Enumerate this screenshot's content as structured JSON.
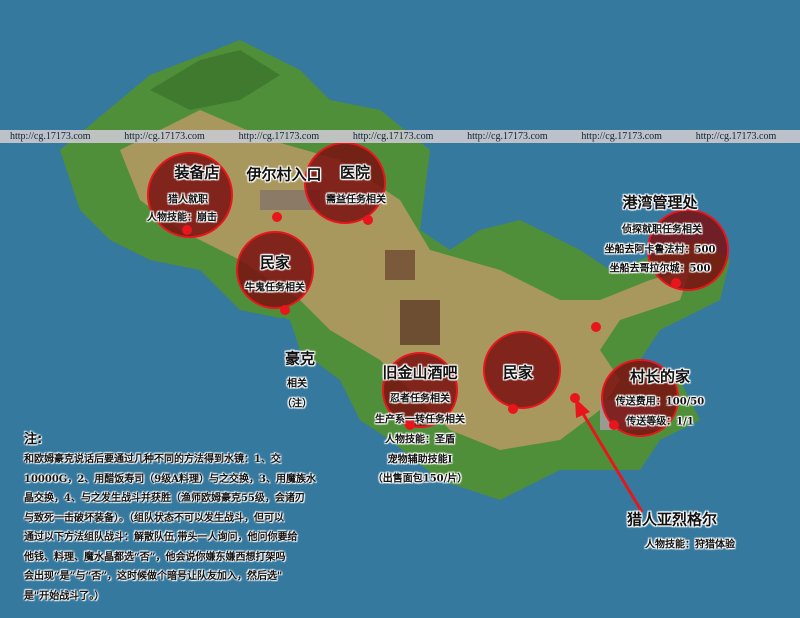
{
  "colors": {
    "water": "#36799f",
    "grass": "#4f8f3a",
    "path": "#b99a64",
    "marker": "#e8161c",
    "circle_fill": "#7a0f10"
  },
  "watermark": {
    "text": "http://cg.17173.com",
    "repeat": 7
  },
  "locations": [
    {
      "id": "equipment-shop",
      "title": "装备店",
      "lines": [
        "猎人就职",
        "人物技能：崩击"
      ]
    },
    {
      "id": "village-entrance",
      "title": "伊尔村入口",
      "lines": []
    },
    {
      "id": "hospital",
      "title": "医院",
      "lines": [
        "需益任务相关"
      ]
    },
    {
      "id": "house-1",
      "title": "民家",
      "lines": [
        "牛鬼任务相关"
      ]
    },
    {
      "id": "harbor-office",
      "title": "港湾管理处",
      "lines": [
        "侦探就职任务相关",
        "坐船去阿卡鲁法村：500",
        "坐船去哥拉尔城：500"
      ]
    },
    {
      "id": "chief-house",
      "title": "村长的家",
      "lines": [
        "传送费用：100/50",
        "传送等级：1/1"
      ]
    },
    {
      "id": "house-2",
      "title": "民家",
      "lines": []
    },
    {
      "id": "old-gold-bar",
      "title": "旧金山酒吧",
      "lines": [
        "忍者任务相关",
        "生产系一转任务相关",
        "人物技能：圣盾",
        "宠物辅助技能I",
        "（出售面包150/片）"
      ]
    },
    {
      "id": "hawk-partial",
      "title": "豪克",
      "lines": [
        "相关",
        "（注）"
      ]
    },
    {
      "id": "hunter",
      "title": "猎人亚烈格尔",
      "lines": [
        "人物技能：狩猎体验"
      ]
    }
  ],
  "note": {
    "title": "注:",
    "lines": [
      "和欧姆豪克说话后要通过几种不同的方法得到水镜：1、交",
      "10000G，2、用醋饭寿司（9级A料理）与之交换，3、用魔族水",
      "晶交换，4、与之发生战斗并获胜（渔师欧姆豪克55级，会诸刃",
      "与致死一击破坏装备）。（组队状态不可以发生战斗，但可以",
      "通过以下方法组队战斗：解散队伍,带头一人询问，他问你要给",
      "他钱、料理、魔水晶都选“否”，他会说你嫌东嫌西想打架吗",
      "会出现“是”与“否”，这时候做个暗号让队友加入，然后选\"",
      "是\"开始战斗了。）"
    ]
  }
}
